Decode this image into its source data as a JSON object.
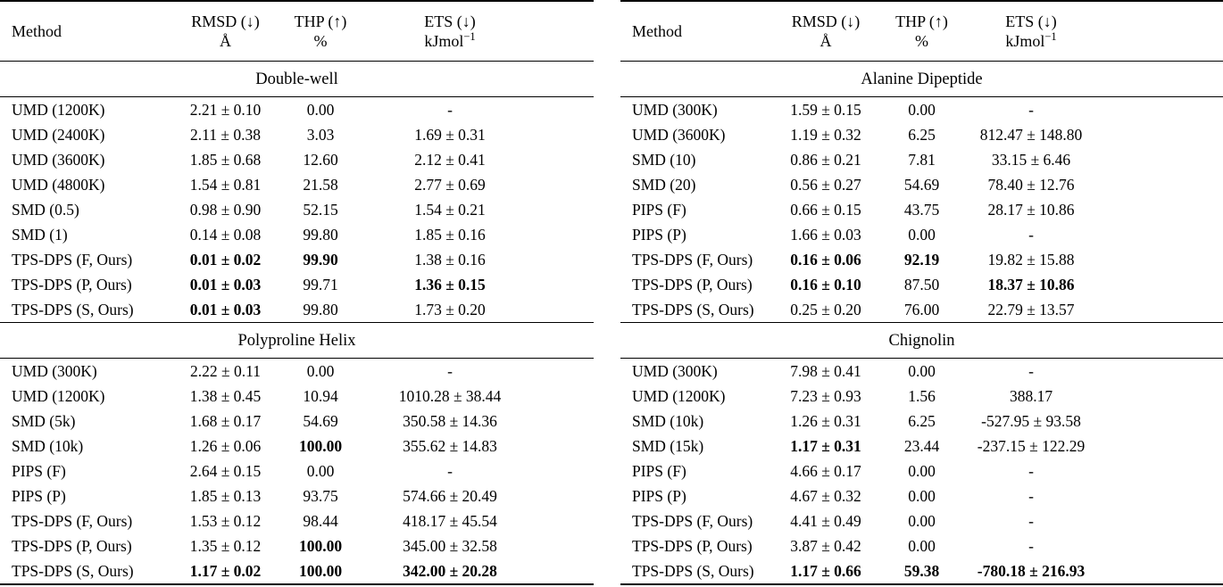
{
  "tables": [
    {
      "position": "left",
      "header": {
        "method": "Method",
        "rmsd_line1": "RMSD (↓)",
        "rmsd_line2": "Å",
        "thp_line1": "THP (↑)",
        "thp_line2": "%",
        "ets_line1": "ETS (↓)",
        "ets_line2": "kJmol",
        "ets_sup": "−1"
      },
      "sections": [
        {
          "title": "Double-well",
          "rows": [
            {
              "method": "UMD (1200K)",
              "rmsd": "2.21 ± 0.10",
              "thp": "0.00",
              "ets": "-",
              "bold": []
            },
            {
              "method": "UMD (2400K)",
              "rmsd": "2.11 ± 0.38",
              "thp": "3.03",
              "ets": "1.69 ± 0.31",
              "bold": []
            },
            {
              "method": "UMD (3600K)",
              "rmsd": "1.85 ± 0.68",
              "thp": "12.60",
              "ets": "2.12 ± 0.41",
              "bold": []
            },
            {
              "method": "UMD (4800K)",
              "rmsd": "1.54 ± 0.81",
              "thp": "21.58",
              "ets": "2.77 ± 0.69",
              "bold": []
            },
            {
              "method": "SMD (0.5)",
              "rmsd": "0.98 ± 0.90",
              "thp": "52.15",
              "ets": "1.54 ± 0.21",
              "bold": []
            },
            {
              "method": "SMD (1)",
              "rmsd": "0.14 ± 0.08",
              "thp": "99.80",
              "ets": "1.85 ± 0.16",
              "bold": []
            },
            {
              "method": "TPS-DPS (F, Ours)",
              "rmsd": "0.01 ± 0.02",
              "thp": "99.90",
              "ets": "1.38 ± 0.16",
              "bold": [
                "rmsd",
                "thp"
              ]
            },
            {
              "method": "TPS-DPS (P, Ours)",
              "rmsd": "0.01 ± 0.03",
              "thp": "99.71",
              "ets": "1.36 ± 0.15",
              "bold": [
                "rmsd",
                "ets"
              ]
            },
            {
              "method": "TPS-DPS (S, Ours)",
              "rmsd": "0.01 ± 0.03",
              "thp": "99.80",
              "ets": "1.73 ± 0.20",
              "bold": [
                "rmsd"
              ]
            }
          ]
        },
        {
          "title": "Polyproline Helix",
          "rows": [
            {
              "method": "UMD (300K)",
              "rmsd": "2.22 ± 0.11",
              "thp": "0.00",
              "ets": "-",
              "bold": []
            },
            {
              "method": "UMD (1200K)",
              "rmsd": "1.38 ± 0.45",
              "thp": "10.94",
              "ets": "1010.28 ± 38.44",
              "bold": []
            },
            {
              "method": "SMD (5k)",
              "rmsd": "1.68 ± 0.17",
              "thp": "54.69",
              "ets": "350.58 ± 14.36",
              "bold": []
            },
            {
              "method": "SMD (10k)",
              "rmsd": "1.26 ± 0.06",
              "thp": "100.00",
              "ets": "355.62 ± 14.83",
              "bold": [
                "thp"
              ]
            },
            {
              "method": "PIPS (F)",
              "rmsd": "2.64 ± 0.15",
              "thp": "0.00",
              "ets": "-",
              "bold": []
            },
            {
              "method": "PIPS (P)",
              "rmsd": "1.85 ± 0.13",
              "thp": "93.75",
              "ets": "574.66 ± 20.49",
              "bold": []
            },
            {
              "method": "TPS-DPS (F, Ours)",
              "rmsd": "1.53 ± 0.12",
              "thp": "98.44",
              "ets": "418.17 ± 45.54",
              "bold": []
            },
            {
              "method": "TPS-DPS (P, Ours)",
              "rmsd": "1.35 ± 0.12",
              "thp": "100.00",
              "ets": "345.00 ± 32.58",
              "bold": [
                "thp"
              ]
            },
            {
              "method": "TPS-DPS (S, Ours)",
              "rmsd": "1.17 ± 0.02",
              "thp": "100.00",
              "ets": "342.00 ± 20.28",
              "bold": [
                "rmsd",
                "thp",
                "ets"
              ]
            }
          ]
        }
      ]
    },
    {
      "position": "right",
      "header": {
        "method": "Method",
        "rmsd_line1": "RMSD (↓)",
        "rmsd_line2": "Å",
        "thp_line1": "THP (↑)",
        "thp_line2": "%",
        "ets_line1": "ETS (↓)",
        "ets_line2": "kJmol",
        "ets_sup": "−1"
      },
      "sections": [
        {
          "title": "Alanine Dipeptide",
          "rows": [
            {
              "method": "UMD (300K)",
              "rmsd": "1.59 ± 0.15",
              "thp": "0.00",
              "ets": "-",
              "bold": []
            },
            {
              "method": "UMD (3600K)",
              "rmsd": "1.19 ± 0.32",
              "thp": "6.25",
              "ets": "812.47 ± 148.80",
              "bold": []
            },
            {
              "method": "SMD (10)",
              "rmsd": "0.86 ± 0.21",
              "thp": "7.81",
              "ets": "33.15 ± 6.46",
              "bold": []
            },
            {
              "method": "SMD (20)",
              "rmsd": "0.56 ± 0.27",
              "thp": "54.69",
              "ets": "78.40 ± 12.76",
              "bold": []
            },
            {
              "method": "PIPS (F)",
              "rmsd": "0.66 ± 0.15",
              "thp": "43.75",
              "ets": "28.17 ± 10.86",
              "bold": []
            },
            {
              "method": "PIPS (P)",
              "rmsd": "1.66 ± 0.03",
              "thp": "0.00",
              "ets": "-",
              "bold": []
            },
            {
              "method": "TPS-DPS (F, Ours)",
              "rmsd": "0.16 ± 0.06",
              "thp": "92.19",
              "ets": "19.82 ± 15.88",
              "bold": [
                "rmsd",
                "thp"
              ]
            },
            {
              "method": "TPS-DPS (P, Ours)",
              "rmsd": "0.16 ± 0.10",
              "thp": "87.50",
              "ets": "18.37 ± 10.86",
              "bold": [
                "rmsd",
                "ets"
              ]
            },
            {
              "method": "TPS-DPS (S, Ours)",
              "rmsd": "0.25 ± 0.20",
              "thp": "76.00",
              "ets": "22.79 ± 13.57",
              "bold": []
            }
          ]
        },
        {
          "title": "Chignolin",
          "rows": [
            {
              "method": "UMD (300K)",
              "rmsd": "7.98 ± 0.41",
              "thp": "0.00",
              "ets": "-",
              "bold": []
            },
            {
              "method": "UMD (1200K)",
              "rmsd": "7.23 ± 0.93",
              "thp": "1.56",
              "ets": "388.17",
              "bold": []
            },
            {
              "method": "SMD (10k)",
              "rmsd": "1.26 ± 0.31",
              "thp": "6.25",
              "ets": "-527.95 ± 93.58",
              "bold": []
            },
            {
              "method": "SMD (15k)",
              "rmsd": "1.17 ± 0.31",
              "thp": "23.44",
              "ets": "-237.15 ± 122.29",
              "bold": [
                "rmsd"
              ]
            },
            {
              "method": "PIPS (F)",
              "rmsd": "4.66 ± 0.17",
              "thp": "0.00",
              "ets": "-",
              "bold": []
            },
            {
              "method": "PIPS (P)",
              "rmsd": "4.67 ± 0.32",
              "thp": "0.00",
              "ets": "-",
              "bold": []
            },
            {
              "method": "TPS-DPS (F, Ours)",
              "rmsd": "4.41 ± 0.49",
              "thp": "0.00",
              "ets": "-",
              "bold": []
            },
            {
              "method": "TPS-DPS (P, Ours)",
              "rmsd": "3.87 ± 0.42",
              "thp": "0.00",
              "ets": "-",
              "bold": []
            },
            {
              "method": "TPS-DPS (S, Ours)",
              "rmsd": "1.17 ± 0.66",
              "thp": "59.38",
              "ets": "-780.18 ± 216.93",
              "bold": [
                "rmsd",
                "thp",
                "ets"
              ]
            }
          ]
        }
      ]
    }
  ]
}
